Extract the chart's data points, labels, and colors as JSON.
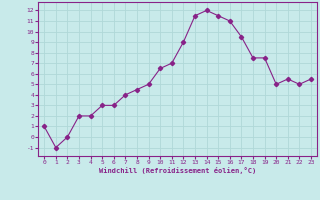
{
  "x": [
    0,
    1,
    2,
    3,
    4,
    5,
    6,
    7,
    8,
    9,
    10,
    11,
    12,
    13,
    14,
    15,
    16,
    17,
    18,
    19,
    20,
    21,
    22,
    23
  ],
  "y": [
    1,
    -1,
    0,
    2,
    2,
    3,
    3,
    4,
    4.5,
    5,
    6.5,
    7,
    9,
    11.5,
    12,
    11.5,
    11,
    9.5,
    7.5,
    7.5,
    5,
    5.5,
    5,
    5.5
  ],
  "xlabel": "Windchill (Refroidissement éolien,°C)",
  "ylim": [
    -1.8,
    12.8
  ],
  "xlim": [
    -0.5,
    23.5
  ],
  "yticks": [
    -1,
    0,
    1,
    2,
    3,
    4,
    5,
    6,
    7,
    8,
    9,
    10,
    11,
    12
  ],
  "xticks": [
    0,
    1,
    2,
    3,
    4,
    5,
    6,
    7,
    8,
    9,
    10,
    11,
    12,
    13,
    14,
    15,
    16,
    17,
    18,
    19,
    20,
    21,
    22,
    23
  ],
  "line_color": "#882288",
  "marker": "D",
  "marker_size": 2.2,
  "bg_color": "#c8eaea",
  "grid_color": "#b0d8d8",
  "tick_label_color": "#882288",
  "axis_label_color": "#882288",
  "spine_color": "#882288"
}
